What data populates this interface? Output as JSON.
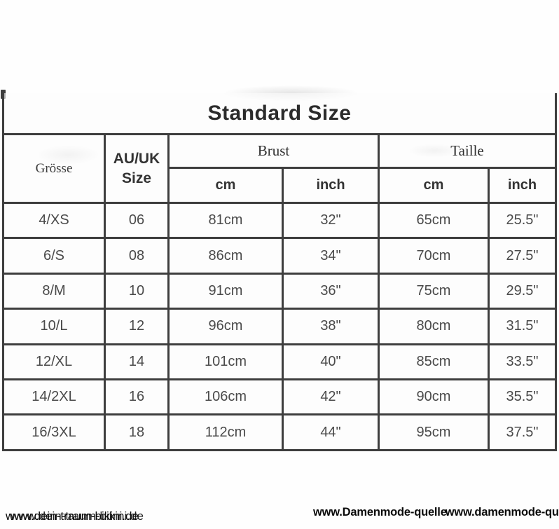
{
  "title": "Standard Size",
  "table": {
    "headers": {
      "groesse": "Grösse",
      "au_uk_line1": "AU/UK",
      "au_uk_line2": "Size",
      "brust": "Brust",
      "taille": "Taille",
      "cm": "cm",
      "inch": "inch"
    },
    "rows": [
      {
        "groesse": "4/XS",
        "au_uk": "06",
        "brust_cm": "81cm",
        "brust_inch": "32\"",
        "taille_cm": "65cm",
        "taille_inch": "25.5\""
      },
      {
        "groesse": "6/S",
        "au_uk": "08",
        "brust_cm": "86cm",
        "brust_inch": "34\"",
        "taille_cm": "70cm",
        "taille_inch": "27.5\""
      },
      {
        "groesse": "8/M",
        "au_uk": "10",
        "brust_cm": "91cm",
        "brust_inch": "36\"",
        "taille_cm": "75cm",
        "taille_inch": "29.5\""
      },
      {
        "groesse": "10/L",
        "au_uk": "12",
        "brust_cm": "96cm",
        "brust_inch": "38\"",
        "taille_cm": "80cm",
        "taille_inch": "31.5\""
      },
      {
        "groesse": "12/XL",
        "au_uk": "14",
        "brust_cm": "101cm",
        "brust_inch": "40\"",
        "taille_cm": "85cm",
        "taille_inch": "33.5\""
      },
      {
        "groesse": "14/2XL",
        "au_uk": "16",
        "brust_cm": "106cm",
        "brust_inch": "42\"",
        "taille_cm": "90cm",
        "taille_inch": "35.5\""
      },
      {
        "groesse": "16/3XL",
        "au_uk": "18",
        "brust_cm": "112cm",
        "brust_inch": "44\"",
        "taille_cm": "95cm",
        "taille_inch": "37.5\""
      }
    ]
  },
  "watermarks": {
    "bottom_left_1": "www.dein-traum-bikini.de",
    "bottom_left_2": "www.dein-traum-bikini.de",
    "bottom_right_1": "www.Damenmode-quelle",
    "bottom_right_2": "www.damenmode-quelle.de"
  },
  "colors": {
    "border": "#3e3e3e",
    "title_text": "#2b2b2b",
    "cell_text": "#4a4a4a",
    "watermark_text": "#0a0a0a"
  }
}
